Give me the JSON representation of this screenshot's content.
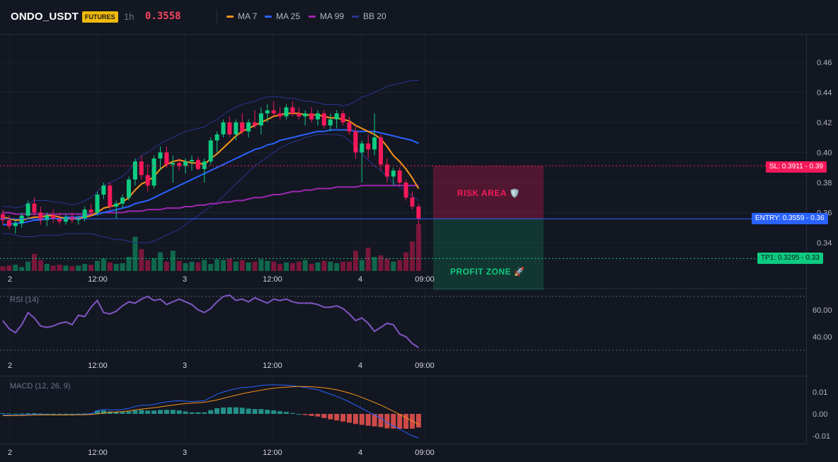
{
  "header": {
    "symbol": "ONDO_USDT",
    "badge": "FUTURES",
    "timeframe": "1h",
    "price": "0.3558",
    "legend": [
      {
        "label": "MA 7",
        "color": "#f7931a"
      },
      {
        "label": "MA 25",
        "color": "#2962ff"
      },
      {
        "label": "MA 99",
        "color": "#9c27b0"
      },
      {
        "label": "BB 20",
        "color": "#283593"
      }
    ]
  },
  "price_axis": {
    "ticks": [
      "0.46",
      "0.44",
      "0.42",
      "0.40",
      "0.38",
      "0.36",
      "0.34"
    ]
  },
  "time_axis": {
    "ticks": [
      "2",
      "12:00",
      "3",
      "12:00",
      "4",
      "09:00"
    ]
  },
  "levels": {
    "sl": {
      "label": "SL: 0.3911 - 0.39",
      "value": 0.3911,
      "color": "#f6195a"
    },
    "entry": {
      "label": "ENTRY: 0.3559 - 0.36",
      "value": 0.3559,
      "color": "#2962ff"
    },
    "tp1": {
      "label": "TP1: 0.3295 - 0.33",
      "value": 0.3295,
      "color": "#0ecb81"
    }
  },
  "zones": {
    "risk": {
      "label": "RISK AREA 🛡️"
    },
    "profit": {
      "label": "PROFIT ZONE 🚀"
    }
  },
  "rsi": {
    "title": "RSI (14)",
    "ticks": [
      "60.00",
      "40.00"
    ]
  },
  "macd": {
    "title": "MACD (12, 26, 9)",
    "ticks": [
      "0.01",
      "0.00",
      "-0.01"
    ]
  },
  "chart_data": {
    "type": "candlestick",
    "colors": {
      "up": "#0ecb81",
      "down": "#f6195a"
    },
    "ylim": [
      0.32,
      0.47
    ],
    "candles": [
      [
        0.359,
        0.362,
        0.352,
        0.355
      ],
      [
        0.355,
        0.358,
        0.349,
        0.351
      ],
      [
        0.351,
        0.356,
        0.346,
        0.353
      ],
      [
        0.353,
        0.36,
        0.35,
        0.358
      ],
      [
        0.358,
        0.368,
        0.356,
        0.366
      ],
      [
        0.366,
        0.37,
        0.358,
        0.36
      ],
      [
        0.36,
        0.364,
        0.352,
        0.355
      ],
      [
        0.355,
        0.36,
        0.351,
        0.358
      ],
      [
        0.358,
        0.362,
        0.353,
        0.356
      ],
      [
        0.356,
        0.36,
        0.352,
        0.354
      ],
      [
        0.354,
        0.359,
        0.352,
        0.357
      ],
      [
        0.357,
        0.36,
        0.353,
        0.355
      ],
      [
        0.355,
        0.358,
        0.352,
        0.356
      ],
      [
        0.356,
        0.364,
        0.354,
        0.362
      ],
      [
        0.362,
        0.366,
        0.358,
        0.36
      ],
      [
        0.36,
        0.374,
        0.358,
        0.372
      ],
      [
        0.372,
        0.38,
        0.369,
        0.378
      ],
      [
        0.378,
        0.38,
        0.362,
        0.364
      ],
      [
        0.364,
        0.368,
        0.356,
        0.366
      ],
      [
        0.366,
        0.372,
        0.363,
        0.37
      ],
      [
        0.37,
        0.384,
        0.368,
        0.382
      ],
      [
        0.382,
        0.396,
        0.378,
        0.394
      ],
      [
        0.394,
        0.398,
        0.382,
        0.385
      ],
      [
        0.385,
        0.392,
        0.374,
        0.378
      ],
      [
        0.378,
        0.398,
        0.376,
        0.396
      ],
      [
        0.396,
        0.404,
        0.388,
        0.4
      ],
      [
        0.4,
        0.404,
        0.39,
        0.392
      ],
      [
        0.392,
        0.398,
        0.38,
        0.393
      ],
      [
        0.393,
        0.396,
        0.388,
        0.391
      ],
      [
        0.391,
        0.396,
        0.386,
        0.394
      ],
      [
        0.394,
        0.398,
        0.388,
        0.395
      ],
      [
        0.395,
        0.397,
        0.388,
        0.389
      ],
      [
        0.389,
        0.396,
        0.38,
        0.394
      ],
      [
        0.394,
        0.41,
        0.392,
        0.408
      ],
      [
        0.408,
        0.414,
        0.4,
        0.412
      ],
      [
        0.412,
        0.422,
        0.41,
        0.42
      ],
      [
        0.42,
        0.424,
        0.41,
        0.412
      ],
      [
        0.412,
        0.422,
        0.408,
        0.42
      ],
      [
        0.42,
        0.426,
        0.412,
        0.414
      ],
      [
        0.414,
        0.422,
        0.41,
        0.42
      ],
      [
        0.42,
        0.428,
        0.416,
        0.418
      ],
      [
        0.418,
        0.43,
        0.412,
        0.426
      ],
      [
        0.426,
        0.432,
        0.42,
        0.428
      ],
      [
        0.428,
        0.434,
        0.424,
        0.426
      ],
      [
        0.426,
        0.43,
        0.422,
        0.424
      ],
      [
        0.424,
        0.432,
        0.422,
        0.43
      ],
      [
        0.43,
        0.434,
        0.424,
        0.426
      ],
      [
        0.426,
        0.43,
        0.422,
        0.424
      ],
      [
        0.424,
        0.428,
        0.418,
        0.426
      ],
      [
        0.426,
        0.43,
        0.42,
        0.422
      ],
      [
        0.422,
        0.428,
        0.418,
        0.426
      ],
      [
        0.426,
        0.428,
        0.416,
        0.418
      ],
      [
        0.418,
        0.426,
        0.414,
        0.422
      ],
      [
        0.422,
        0.428,
        0.416,
        0.426
      ],
      [
        0.426,
        0.428,
        0.418,
        0.42
      ],
      [
        0.42,
        0.424,
        0.412,
        0.414
      ],
      [
        0.414,
        0.418,
        0.396,
        0.4
      ],
      [
        0.4,
        0.408,
        0.38,
        0.406
      ],
      [
        0.406,
        0.412,
        0.396,
        0.402
      ],
      [
        0.402,
        0.426,
        0.398,
        0.41
      ],
      [
        0.41,
        0.412,
        0.388,
        0.392
      ],
      [
        0.392,
        0.396,
        0.38,
        0.384
      ],
      [
        0.384,
        0.39,
        0.378,
        0.388
      ],
      [
        0.388,
        0.39,
        0.378,
        0.38
      ],
      [
        0.38,
        0.382,
        0.368,
        0.37
      ],
      [
        0.37,
        0.374,
        0.362,
        0.364
      ],
      [
        0.364,
        0.366,
        0.352,
        0.3558
      ]
    ],
    "volume": [
      6,
      7,
      8,
      5,
      12,
      22,
      14,
      9,
      7,
      8,
      7,
      6,
      7,
      9,
      8,
      13,
      16,
      11,
      9,
      10,
      18,
      44,
      28,
      14,
      16,
      24,
      12,
      26,
      13,
      10,
      12,
      11,
      14,
      9,
      15,
      14,
      16,
      12,
      14,
      11,
      12,
      15,
      13,
      12,
      9,
      11,
      10,
      12,
      14,
      9,
      11,
      13,
      12,
      10,
      12,
      12,
      26,
      14,
      30,
      18,
      20,
      16,
      12,
      14,
      24,
      38,
      60
    ],
    "ma7": [
      0.357,
      0.356,
      0.355,
      0.355,
      0.356,
      0.357,
      0.357,
      0.358,
      0.358,
      0.357,
      0.356,
      0.356,
      0.356,
      0.357,
      0.358,
      0.36,
      0.363,
      0.364,
      0.365,
      0.367,
      0.37,
      0.375,
      0.379,
      0.381,
      0.384,
      0.389,
      0.392,
      0.394,
      0.395,
      0.394,
      0.393,
      0.393,
      0.392,
      0.396,
      0.399,
      0.403,
      0.407,
      0.411,
      0.414,
      0.416,
      0.418,
      0.42,
      0.422,
      0.424,
      0.425,
      0.426,
      0.426,
      0.426,
      0.425,
      0.425,
      0.425,
      0.424,
      0.423,
      0.423,
      0.422,
      0.421,
      0.418,
      0.416,
      0.414,
      0.412,
      0.409,
      0.404,
      0.398,
      0.394,
      0.389,
      0.383,
      0.376
    ],
    "ma25": [
      0.352,
      0.352,
      0.353,
      0.353,
      0.354,
      0.355,
      0.355,
      0.356,
      0.356,
      0.356,
      0.357,
      0.357,
      0.357,
      0.358,
      0.358,
      0.359,
      0.36,
      0.361,
      0.362,
      0.363,
      0.364,
      0.366,
      0.367,
      0.368,
      0.37,
      0.372,
      0.374,
      0.376,
      0.378,
      0.38,
      0.382,
      0.384,
      0.386,
      0.388,
      0.39,
      0.392,
      0.394,
      0.396,
      0.398,
      0.4,
      0.402,
      0.403,
      0.405,
      0.406,
      0.408,
      0.409,
      0.41,
      0.411,
      0.412,
      0.413,
      0.414,
      0.414,
      0.415,
      0.415,
      0.415,
      0.415,
      0.414,
      0.414,
      0.414,
      0.414,
      0.413,
      0.412,
      0.411,
      0.41,
      0.409,
      0.408,
      0.406
    ],
    "ma99": [
      0.36,
      0.36,
      0.359,
      0.359,
      0.359,
      0.359,
      0.359,
      0.359,
      0.359,
      0.359,
      0.359,
      0.359,
      0.359,
      0.359,
      0.359,
      0.359,
      0.36,
      0.36,
      0.36,
      0.36,
      0.361,
      0.361,
      0.361,
      0.362,
      0.362,
      0.362,
      0.363,
      0.363,
      0.363,
      0.364,
      0.364,
      0.365,
      0.365,
      0.366,
      0.366,
      0.367,
      0.367,
      0.368,
      0.368,
      0.369,
      0.37,
      0.37,
      0.371,
      0.372,
      0.372,
      0.373,
      0.374,
      0.374,
      0.375,
      0.375,
      0.376,
      0.376,
      0.376,
      0.377,
      0.377,
      0.377,
      0.377,
      0.378,
      0.378,
      0.378,
      0.378,
      0.378,
      0.378,
      0.378,
      0.378,
      0.378,
      0.378
    ],
    "bb_upper": [
      0.364,
      0.364,
      0.363,
      0.364,
      0.366,
      0.368,
      0.368,
      0.368,
      0.367,
      0.367,
      0.366,
      0.365,
      0.366,
      0.368,
      0.37,
      0.374,
      0.378,
      0.38,
      0.382,
      0.384,
      0.388,
      0.394,
      0.398,
      0.4,
      0.403,
      0.406,
      0.408,
      0.41,
      0.412,
      0.414,
      0.415,
      0.416,
      0.417,
      0.42,
      0.422,
      0.425,
      0.428,
      0.43,
      0.432,
      0.433,
      0.434,
      0.436,
      0.437,
      0.437,
      0.437,
      0.436,
      0.436,
      0.435,
      0.434,
      0.434,
      0.433,
      0.432,
      0.432,
      0.432,
      0.431,
      0.432,
      0.434,
      0.437,
      0.438,
      0.44,
      0.442,
      0.444,
      0.445,
      0.446,
      0.447,
      0.448,
      0.448
    ],
    "bb_lower": [
      0.346,
      0.346,
      0.345,
      0.344,
      0.344,
      0.344,
      0.345,
      0.345,
      0.345,
      0.345,
      0.346,
      0.346,
      0.346,
      0.346,
      0.346,
      0.345,
      0.344,
      0.343,
      0.342,
      0.342,
      0.341,
      0.34,
      0.34,
      0.34,
      0.341,
      0.343,
      0.345,
      0.347,
      0.349,
      0.352,
      0.355,
      0.358,
      0.361,
      0.364,
      0.367,
      0.371,
      0.375,
      0.379,
      0.383,
      0.387,
      0.391,
      0.394,
      0.397,
      0.4,
      0.403,
      0.405,
      0.407,
      0.408,
      0.41,
      0.411,
      0.412,
      0.412,
      0.412,
      0.412,
      0.411,
      0.408,
      0.404,
      0.399,
      0.395,
      0.391,
      0.388,
      0.384,
      0.38,
      0.377,
      0.374,
      0.371,
      0.368
    ],
    "rsi": [
      52,
      46,
      43,
      49,
      58,
      54,
      48,
      47,
      48,
      50,
      51,
      49,
      56,
      55,
      62,
      67,
      58,
      57,
      59,
      63,
      66,
      65,
      68,
      70,
      67,
      68,
      64,
      66,
      68,
      66,
      64,
      60,
      58,
      61,
      66,
      70,
      71,
      67,
      68,
      66,
      69,
      67,
      65,
      68,
      67,
      68,
      66,
      65,
      65,
      65,
      64,
      62,
      62,
      63,
      61,
      57,
      52,
      54,
      50,
      44,
      47,
      50,
      49,
      42,
      40,
      35,
      32
    ],
    "macd": [
      -0.0005,
      -0.0006,
      -0.0006,
      -0.0005,
      -0.0003,
      -0.0002,
      -0.0003,
      -0.0004,
      -0.0004,
      -0.0004,
      -0.0004,
      -0.0004,
      -0.0003,
      -0.0002,
      0.0,
      0.0015,
      0.002,
      0.0018,
      0.0018,
      0.002,
      0.0025,
      0.0034,
      0.004,
      0.004,
      0.0043,
      0.005,
      0.0055,
      0.0058,
      0.006,
      0.0058,
      0.0056,
      0.0058,
      0.006,
      0.0075,
      0.009,
      0.01,
      0.0108,
      0.0115,
      0.012,
      0.0122,
      0.0125,
      0.013,
      0.0132,
      0.0133,
      0.0132,
      0.0131,
      0.0128,
      0.0125,
      0.012,
      0.0115,
      0.011,
      0.01,
      0.009,
      0.008,
      0.0068,
      0.0055,
      0.004,
      0.0025,
      0.001,
      -0.0005,
      -0.002,
      -0.004,
      -0.0055,
      -0.007,
      -0.0085,
      -0.01,
      -0.011
    ],
    "macd_signal": [
      -0.0008,
      -0.0008,
      -0.0007,
      -0.0007,
      -0.0006,
      -0.0005,
      -0.0005,
      -0.0005,
      -0.0005,
      -0.0005,
      -0.0005,
      -0.0005,
      -0.0004,
      -0.0004,
      -0.0003,
      0.0,
      0.0004,
      0.0007,
      0.0009,
      0.0011,
      0.0014,
      0.0018,
      0.0022,
      0.0025,
      0.0028,
      0.0032,
      0.0036,
      0.004,
      0.0044,
      0.0047,
      0.0049,
      0.0051,
      0.0053,
      0.0058,
      0.0064,
      0.0071,
      0.0078,
      0.0085,
      0.0092,
      0.0098,
      0.0103,
      0.0108,
      0.0113,
      0.0117,
      0.012,
      0.0122,
      0.0124,
      0.0125,
      0.0125,
      0.0124,
      0.0122,
      0.0119,
      0.0115,
      0.011,
      0.0103,
      0.0095,
      0.0086,
      0.0075,
      0.0064,
      0.0052,
      0.004,
      0.0026,
      0.0012,
      -0.0002,
      -0.0017,
      -0.0033,
      -0.0048
    ]
  }
}
